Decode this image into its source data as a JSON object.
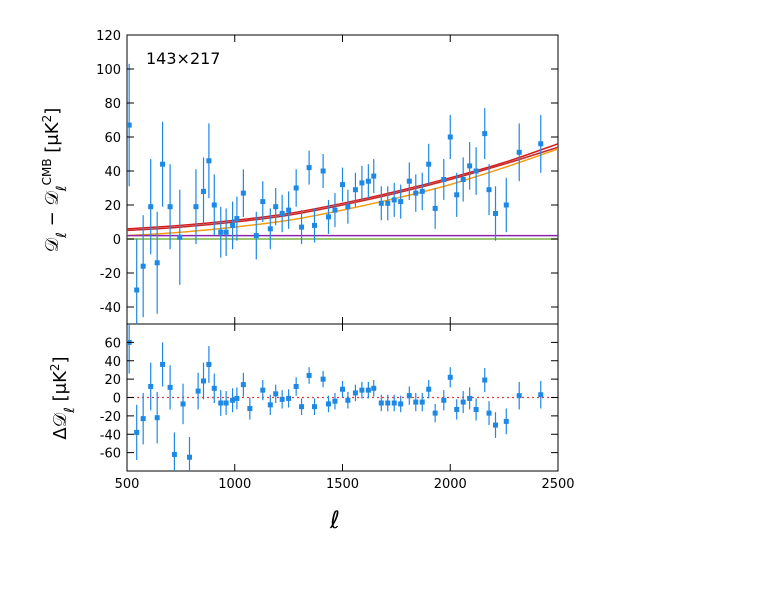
{
  "chart_data": [
    {
      "type": "scatter",
      "annotation": "143×217",
      "ylabel": [
        {
          "text": "𝒟"
        },
        {
          "text": "ℓ",
          "sub": true
        },
        {
          "text": " − 𝒟"
        },
        {
          "text": "ℓ",
          "sub": true
        },
        {
          "text": "CMB",
          "sup": true
        },
        {
          "text": " [μK"
        },
        {
          "text": "2",
          "sup": true
        },
        {
          "text": "]"
        }
      ],
      "xlim": [
        500,
        2500
      ],
      "ylim": [
        -50,
        120
      ],
      "yticks": [
        -40,
        -20,
        0,
        20,
        40,
        60,
        80,
        100,
        120
      ],
      "series": [
        {
          "color": "#1e88e5",
          "x": [
            510,
            545,
            575,
            610,
            640,
            665,
            700,
            745,
            820,
            855,
            880,
            905,
            935,
            960,
            990,
            1010,
            1040,
            1100,
            1130,
            1165,
            1190,
            1220,
            1250,
            1285,
            1310,
            1345,
            1370,
            1410,
            1435,
            1465,
            1500,
            1525,
            1560,
            1590,
            1620,
            1645,
            1680,
            1710,
            1740,
            1770,
            1810,
            1840,
            1870,
            1900,
            1930,
            1970,
            2000,
            2030,
            2060,
            2090,
            2120,
            2160,
            2180,
            2210,
            2260,
            2320,
            2420
          ],
          "values": [
            67,
            -30,
            -16,
            19,
            -14,
            44,
            19,
            1,
            19,
            28,
            46,
            20,
            4,
            4,
            8,
            12,
            27,
            2,
            22,
            6,
            19,
            15,
            17,
            30,
            7,
            42,
            8,
            40,
            13,
            17,
            32,
            19,
            29,
            33,
            34,
            37,
            21,
            21,
            23,
            22,
            34,
            27,
            28,
            44,
            18,
            35,
            60,
            26,
            35,
            43,
            40,
            62,
            29,
            15,
            20,
            51,
            56
          ],
          "errors": [
            36,
            30,
            30,
            28,
            30,
            25,
            25,
            28,
            22,
            20,
            22,
            18,
            15,
            14,
            14,
            13,
            14,
            14,
            12,
            12,
            11,
            11,
            11,
            11,
            10,
            10,
            10,
            10,
            10,
            10,
            10,
            10,
            10,
            10,
            10,
            10,
            10,
            10,
            10,
            10,
            11,
            11,
            11,
            12,
            12,
            12,
            13,
            13,
            13,
            14,
            14,
            15,
            15,
            16,
            16,
            17,
            17
          ]
        }
      ],
      "lines": [
        {
          "color": "#d81b1b",
          "x": [
            500,
            750,
            1000,
            1250,
            1500,
            1750,
            2000,
            2250,
            2500
          ],
          "values": [
            6,
            8,
            11,
            15,
            21,
            28,
            36,
            45,
            56
          ]
        },
        {
          "color": "#c62828",
          "x": [
            500,
            750,
            1000,
            1250,
            1500,
            1750,
            2000,
            2250,
            2500
          ],
          "values": [
            5,
            7,
            10,
            14,
            20,
            27,
            35,
            44,
            54
          ]
        },
        {
          "color": "#f39c12",
          "x": [
            500,
            750,
            1000,
            1250,
            1500,
            1750,
            2000,
            2250,
            2500
          ],
          "values": [
            2,
            4,
            7,
            11,
            17,
            24,
            32,
            42,
            53
          ]
        },
        {
          "color": "#8e24aa",
          "x": [
            500,
            2500
          ],
          "values": [
            2,
            2
          ]
        },
        {
          "color": "#7cb342",
          "x": [
            500,
            2500
          ],
          "values": [
            0,
            0
          ]
        }
      ]
    },
    {
      "type": "scatter",
      "ylabel": [
        {
          "text": "Δ𝒟"
        },
        {
          "text": "ℓ",
          "sub": true
        },
        {
          "text": " [μK"
        },
        {
          "text": "2",
          "sup": true
        },
        {
          "text": "]"
        }
      ],
      "xlabel": "ℓ",
      "xlim": [
        500,
        2500
      ],
      "ylim": [
        -80,
        80
      ],
      "xticks": [
        500,
        1000,
        1500,
        2000,
        2500
      ],
      "yticks": [
        -60,
        -40,
        -20,
        0,
        20,
        40,
        60
      ],
      "zero_line": {
        "value": 0,
        "color": "#e53935"
      },
      "series": [
        {
          "color": "#1e88e5",
          "x": [
            510,
            545,
            575,
            610,
            640,
            665,
            700,
            720,
            760,
            790,
            830,
            855,
            880,
            905,
            935,
            960,
            990,
            1010,
            1040,
            1070,
            1130,
            1165,
            1190,
            1220,
            1250,
            1285,
            1310,
            1345,
            1370,
            1410,
            1435,
            1465,
            1500,
            1525,
            1560,
            1590,
            1620,
            1645,
            1680,
            1710,
            1740,
            1770,
            1810,
            1840,
            1870,
            1900,
            1930,
            1970,
            2000,
            2030,
            2060,
            2090,
            2120,
            2160,
            2180,
            2210,
            2260,
            2320,
            2420
          ],
          "values": [
            60,
            -38,
            -23,
            12,
            -22,
            36,
            11,
            -62,
            -7,
            -65,
            7,
            18,
            36,
            10,
            -6,
            -6,
            -3,
            -1,
            14,
            -12,
            8,
            -8,
            4,
            -2,
            -1,
            12,
            -10,
            24,
            -10,
            20,
            -7,
            -4,
            9,
            -3,
            5,
            8,
            8,
            10,
            -6,
            -6,
            -6,
            -7,
            2,
            -5,
            -5,
            9,
            -17,
            -3,
            22,
            -13,
            -5,
            -1,
            -13,
            19,
            -17,
            -30,
            -26,
            2,
            3
          ],
          "errors": [
            34,
            30,
            28,
            26,
            28,
            24,
            24,
            24,
            22,
            22,
            20,
            20,
            20,
            16,
            14,
            13,
            13,
            12,
            13,
            12,
            11,
            11,
            10,
            10,
            10,
            10,
            9,
            9,
            9,
            9,
            9,
            9,
            9,
            9,
            9,
            9,
            9,
            9,
            9,
            9,
            9,
            9,
            10,
            10,
            10,
            10,
            10,
            11,
            11,
            11,
            12,
            12,
            12,
            13,
            13,
            14,
            14,
            15,
            15
          ]
        }
      ]
    }
  ]
}
